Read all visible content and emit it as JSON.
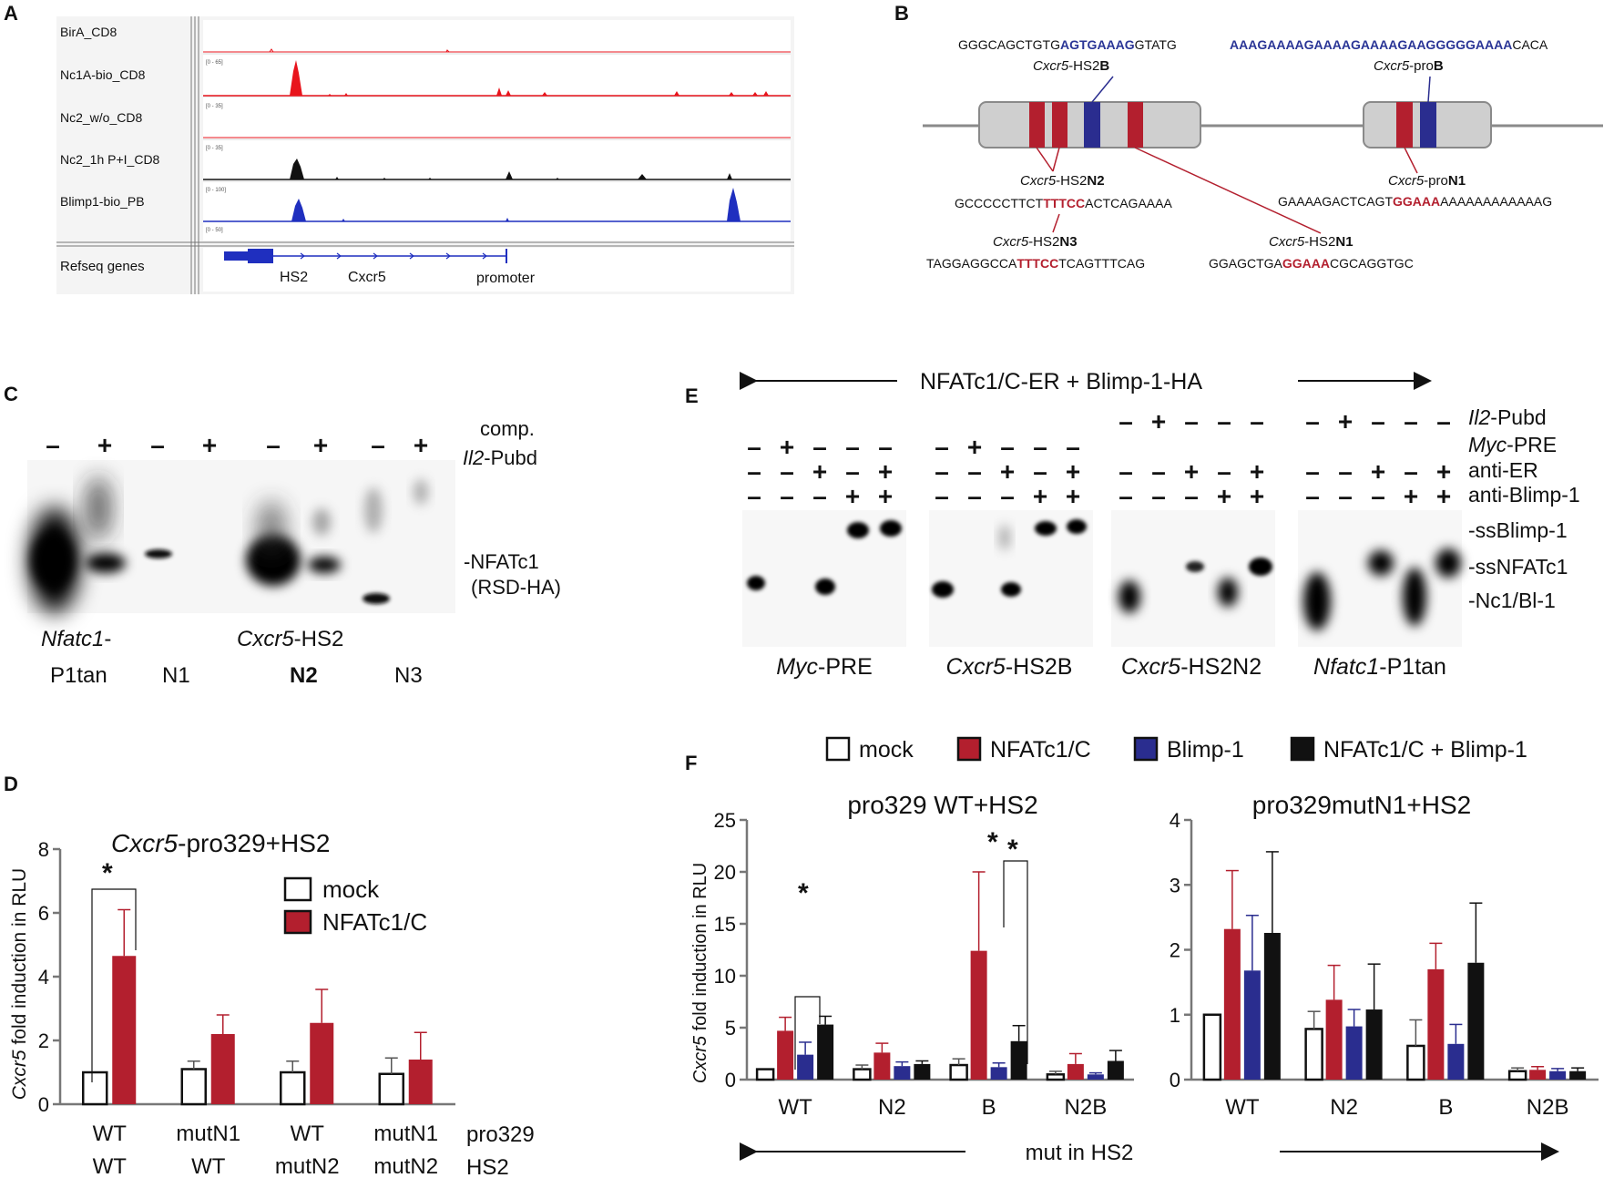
{
  "panel_labels": {
    "a": "A",
    "b": "B",
    "c": "C",
    "d": "D",
    "e": "E",
    "f": "F"
  },
  "colors": {
    "red": "#b31f2e",
    "blue": "#2a2d8f",
    "black": "#111111",
    "track_red": "#e8141c",
    "track_blue": "#1f2fbf"
  },
  "panel_a": {
    "tracks": [
      {
        "label": "BirA_CD8",
        "scale": ""
      },
      {
        "label": "Nc1A-bio_CD8",
        "scale": "[0 - 65]"
      },
      {
        "label": "Nc2_w/o_CD8",
        "scale": "[0 - 35]"
      },
      {
        "label": "Nc2_1h P+I_CD8",
        "scale": "[0 - 35]"
      },
      {
        "label": "Blimp1-bio_PB",
        "scale": "[0 - 100]"
      }
    ],
    "baseline_scale": "[0 - 50]",
    "refseq_label": "Refseq genes",
    "gene_labels": {
      "hs2": "HS2",
      "gene": "Cxcr5",
      "promoter": "promoter"
    }
  },
  "panel_b": {
    "seq1": {
      "pre": "GGGCAGCTGTG",
      "hl": "AGTGAAAG",
      "post": "GTATG"
    },
    "seq2": {
      "hl": "AAAGAAAAGAAAAGAAAAGAAGGGGGAAAA",
      "post": "CACA"
    },
    "hs2b": {
      "gene": "Cxcr5",
      "mid": "-HS2",
      "bold": "B"
    },
    "prob": {
      "gene": "Cxcr5",
      "mid": "-pro",
      "bold": "B"
    },
    "hs2n2": {
      "gene": "Cxcr5",
      "mid": "-HS2",
      "bold": "N2",
      "pre": "GCCCCCTTCT",
      "hl": "TTTCC",
      "post": "ACTCAGAAAA"
    },
    "hs2n3": {
      "gene": "Cxcr5",
      "mid": "-HS2",
      "bold": "N3",
      "pre": "TAGGAGGCCA",
      "hl": "TTTCC",
      "post": "TCAGTTTCAG"
    },
    "pron1": {
      "gene": "Cxcr5",
      "mid": "-pro",
      "bold": "N1",
      "pre": "GAAAAGACTCAGT",
      "hl": "GGAAA",
      "post": "AAAAAAAAAAAAG"
    },
    "hs2n1": {
      "gene": "Cxcr5",
      "mid": "-HS2",
      "bold": "N1",
      "pre": "GGAGCTGA",
      "hl": "GGAAA",
      "post": "CGCAGGTGC"
    }
  },
  "panel_c": {
    "signs": [
      "–",
      "+",
      "–",
      "+",
      "–",
      "+",
      "–",
      "+"
    ],
    "comp": "comp.",
    "probe_gene": "Il2",
    "probe_rest": "-Pubd",
    "band": "-NFATc1",
    "band2": "(RSD-HA)",
    "lane1_gene": "Nfatc1",
    "lane1_dash": "-",
    "lane1_b": "P1tan",
    "n1": "N1",
    "hs2_gene": "Cxcr5",
    "hs2_rest": "-HS2",
    "n2": "N2",
    "n3": "N3"
  },
  "panel_d": {
    "title_gene": "Cxcr5",
    "title_rest": "-pro329+HS2",
    "ylabel_gene": "Cxcr5",
    "ylabel_rest": " fold induction in RLU",
    "star": "*",
    "row_labels": {
      "pro329": "pro329",
      "hs2": "HS2"
    }
  },
  "panel_e": {
    "header": "NFATc1/C-ER + Blimp-1-HA",
    "rows": [
      {
        "gene": "Il2",
        "rest": "-Pubd"
      },
      {
        "gene": "Myc",
        "rest": "-PRE"
      },
      {
        "gene": "",
        "rest": "anti-ER"
      },
      {
        "gene": "",
        "rest": "anti-Blimp-1"
      }
    ],
    "bands": [
      "-ssBlimp-1",
      "-ssNFATc1",
      "-Nc1/Bl-1"
    ],
    "probes": [
      {
        "gene": "Myc",
        "rest": "-PRE"
      },
      {
        "gene": "Cxcr5",
        "rest": "-HS2B"
      },
      {
        "gene": "Cxcr5",
        "rest": "-HS2N2"
      },
      {
        "gene": "Nfatc1",
        "rest": "-P1tan"
      }
    ],
    "sign_rows": [
      [
        "–",
        "+",
        "–",
        "–",
        "–"
      ],
      [
        "–",
        "–",
        "+",
        "–",
        "+"
      ],
      [
        "–",
        "–",
        "–",
        "+",
        "+"
      ]
    ],
    "sign_rows_b": [
      [
        "–",
        "+",
        "–",
        "–",
        "–"
      ],
      [
        "–",
        "–",
        "+",
        "–",
        "+"
      ],
      [
        "–",
        "–",
        "–",
        "+",
        "+"
      ]
    ]
  },
  "panel_f": {
    "legend": [
      "mock",
      "NFATc1/C",
      "Blimp-1",
      "NFATc1/C + Blimp-1"
    ],
    "ylabel_gene": "Cxcr5",
    "ylabel_rest": " fold induction in RLU",
    "xarrow": "mut in HS2",
    "star": "*"
  },
  "chart_data": [
    {
      "id": "panel_d",
      "type": "bar",
      "title": "Cxcr5-pro329+HS2",
      "ylabel": "Cxcr5 fold induction in RLU",
      "ylim": [
        0,
        8
      ],
      "yticks": [
        "0",
        "2",
        "4",
        "6",
        "8"
      ],
      "categories": [
        "WT|WT",
        "mutN1|WT",
        "WT|mutN2",
        "mutN1|mutN2"
      ],
      "category_rows": [
        [
          "WT",
          "mutN1",
          "WT",
          "mutN1"
        ],
        [
          "WT",
          "WT",
          "mutN2",
          "mutN2"
        ]
      ],
      "series": [
        {
          "name": "mock",
          "values": [
            1.0,
            1.1,
            1.0,
            0.95
          ],
          "errors": [
            0,
            0.25,
            0.35,
            0.5
          ]
        },
        {
          "name": "NFATc1/C",
          "values": [
            4.65,
            2.2,
            2.55,
            1.4
          ],
          "errors": [
            1.45,
            0.6,
            1.05,
            0.85
          ]
        }
      ],
      "annotation": "* WT vs NFATc1/C"
    },
    {
      "id": "panel_f_left",
      "type": "bar",
      "title": "pro329 WT+HS2",
      "ylim": [
        0,
        25
      ],
      "yticks": [
        "0",
        "5",
        "10",
        "15",
        "20",
        "25"
      ],
      "categories": [
        "WT",
        "N2",
        "B",
        "N2B"
      ],
      "series": [
        {
          "name": "mock",
          "values": [
            1.0,
            1.0,
            1.4,
            0.5
          ],
          "errors": [
            0,
            0.4,
            0.6,
            0.3
          ]
        },
        {
          "name": "NFATc1/C",
          "values": [
            4.7,
            2.6,
            12.4,
            1.5
          ],
          "errors": [
            1.3,
            0.9,
            7.6,
            1.0
          ]
        },
        {
          "name": "Blimp-1",
          "values": [
            2.4,
            1.3,
            1.2,
            0.5
          ],
          "errors": [
            1.2,
            0.4,
            0.4,
            0.15
          ]
        },
        {
          "name": "NFATc1/C + Blimp-1",
          "values": [
            5.3,
            1.5,
            3.7,
            1.8
          ],
          "errors": [
            0.8,
            0.3,
            1.5,
            1.0
          ]
        }
      ],
      "annotation": "* WT; * * B"
    },
    {
      "id": "panel_f_right",
      "type": "bar",
      "title": "pro329mutN1+HS2",
      "ylim": [
        0,
        4
      ],
      "yticks": [
        "0",
        "1",
        "2",
        "3",
        "4"
      ],
      "categories": [
        "WT",
        "N2",
        "B",
        "N2B"
      ],
      "series": [
        {
          "name": "mock",
          "values": [
            1.0,
            0.78,
            0.52,
            0.13
          ],
          "errors": [
            0,
            0.27,
            0.4,
            0.05
          ]
        },
        {
          "name": "NFATc1/C",
          "values": [
            2.32,
            1.23,
            1.7,
            0.15
          ],
          "errors": [
            0.9,
            0.53,
            0.4,
            0.05
          ]
        },
        {
          "name": "Blimp-1",
          "values": [
            1.68,
            0.82,
            0.55,
            0.13
          ],
          "errors": [
            0.85,
            0.26,
            0.3,
            0.04
          ]
        },
        {
          "name": "NFATc1/C + Blimp-1",
          "values": [
            2.26,
            1.08,
            1.8,
            0.13
          ],
          "errors": [
            1.25,
            0.7,
            0.92,
            0.05
          ]
        }
      ]
    }
  ]
}
